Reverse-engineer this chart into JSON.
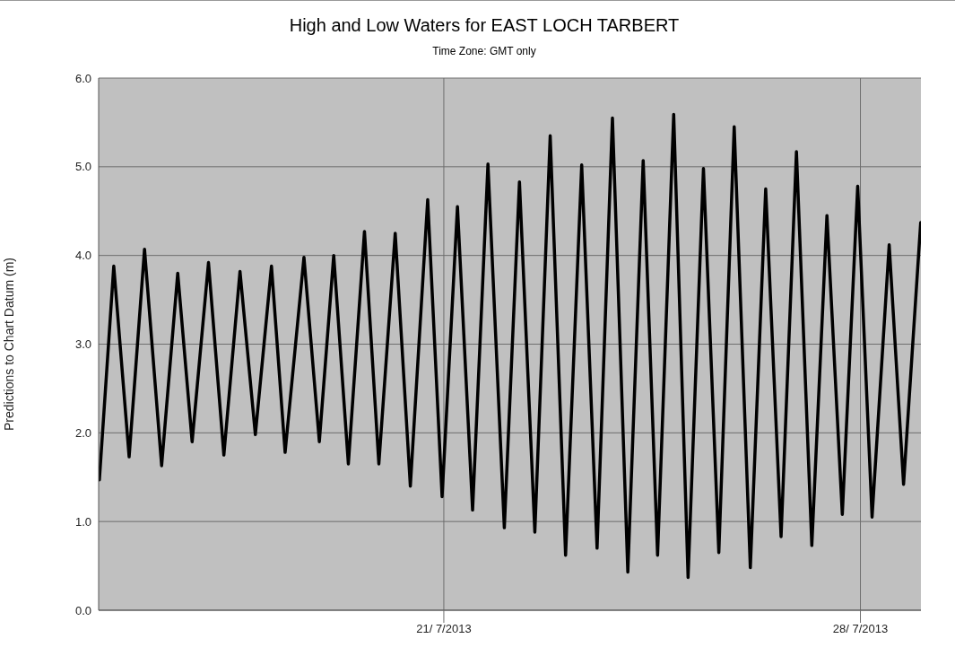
{
  "chart_data": {
    "type": "line",
    "title": "High and Low Waters for EAST LOCH TARBERT",
    "subtitle": "Time Zone: GMT only",
    "ylabel": "Predictions to Chart Datum (m)",
    "x": [
      "2013-07-15T05:06",
      "2013-07-15T10:54",
      "2013-07-15T17:06",
      "2013-07-15T23:18",
      "2013-07-16T06:12",
      "2013-07-16T12:42",
      "2013-07-16T18:30",
      "2013-07-17T01:06",
      "2013-07-17T07:18",
      "2013-07-17T13:48",
      "2013-07-17T20:00",
      "2013-07-18T02:30",
      "2013-07-18T08:00",
      "2013-07-18T15:36",
      "2013-07-18T21:48",
      "2013-07-19T03:36",
      "2013-07-19T09:30",
      "2013-07-19T16:00",
      "2013-07-19T21:48",
      "2013-07-20T04:24",
      "2013-07-20T10:30",
      "2013-07-20T17:30",
      "2013-07-20T23:18",
      "2013-07-21T05:30",
      "2013-07-21T11:36",
      "2013-07-21T17:48",
      "2013-07-22T00:24",
      "2013-07-22T06:30",
      "2013-07-22T12:42",
      "2013-07-22T18:54",
      "2013-07-23T01:06",
      "2013-07-23T07:36",
      "2013-07-23T13:48",
      "2013-07-23T20:00",
      "2013-07-24T02:12",
      "2013-07-24T08:24",
      "2013-07-24T14:12",
      "2013-07-24T20:42",
      "2013-07-25T02:30",
      "2013-07-25T08:42",
      "2013-07-25T14:54",
      "2013-07-25T21:06",
      "2013-07-26T03:36",
      "2013-07-26T09:48",
      "2013-07-26T16:00",
      "2013-07-26T22:12",
      "2013-07-27T04:24",
      "2013-07-27T10:30",
      "2013-07-27T16:42",
      "2013-07-27T22:54",
      "2013-07-28T04:42",
      "2013-07-28T11:36",
      "2013-07-28T17:24",
      "2013-07-29T00:18"
    ],
    "series": [
      {
        "color": "#000000",
        "values": [
          1.47,
          3.88,
          1.73,
          4.07,
          1.63,
          3.8,
          1.9,
          3.92,
          1.75,
          3.82,
          1.98,
          3.88,
          1.78,
          3.98,
          1.9,
          4.0,
          1.65,
          4.27,
          1.65,
          4.25,
          1.4,
          4.63,
          1.28,
          4.55,
          1.13,
          5.03,
          0.93,
          4.83,
          0.88,
          5.35,
          0.62,
          5.02,
          0.7,
          5.55,
          0.43,
          5.07,
          0.62,
          5.59,
          0.37,
          4.98,
          0.65,
          5.45,
          0.48,
          4.75,
          0.83,
          5.17,
          0.73,
          4.45,
          1.08,
          4.78,
          1.05,
          4.12,
          1.42,
          4.37
        ]
      }
    ],
    "xlim": [
      "2013-07-15T04:48",
      "2013-07-29T00:24"
    ],
    "xticks": [
      {
        "value": "2013-07-21",
        "label": "21/ 7/2013"
      },
      {
        "value": "2013-07-28",
        "label": "28/ 7/2013"
      }
    ],
    "ylim": [
      0,
      6
    ],
    "yticks": [
      {
        "value": 0,
        "label": "0.0"
      },
      {
        "value": 1,
        "label": "1.0"
      },
      {
        "value": 2,
        "label": "2.0"
      },
      {
        "value": 3,
        "label": "3.0"
      },
      {
        "value": 4,
        "label": "4.0"
      },
      {
        "value": 5,
        "label": "5.0"
      },
      {
        "value": 6,
        "label": "6.0"
      }
    ],
    "grid": true,
    "legend": false,
    "marker": "none",
    "line_style": "solid"
  }
}
